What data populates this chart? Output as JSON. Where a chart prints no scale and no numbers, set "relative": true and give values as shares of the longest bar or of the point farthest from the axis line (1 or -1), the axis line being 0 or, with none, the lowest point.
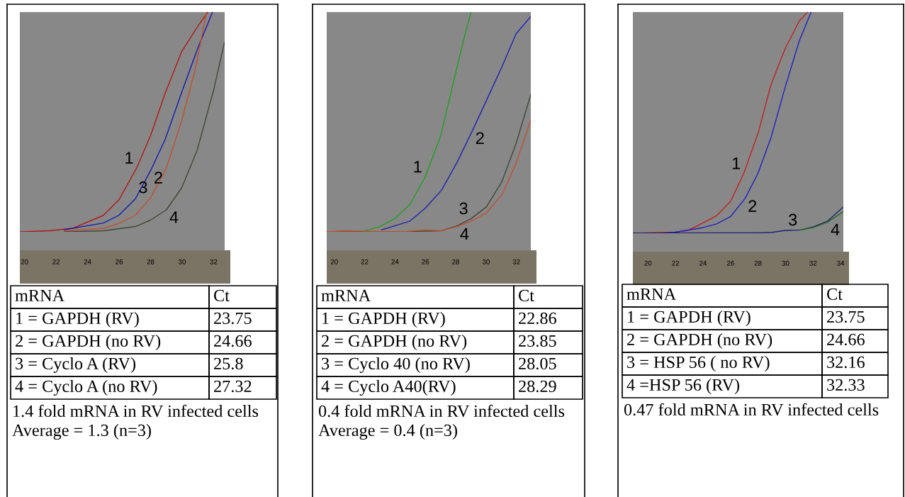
{
  "chart_data": [
    {
      "type": "line",
      "relative": true,
      "xlim": [
        19.7,
        32.7
      ],
      "xticks": [
        20,
        22,
        24,
        26,
        28,
        30,
        32
      ],
      "series": [
        {
          "name": "1",
          "color": "#b01818",
          "x": [
            19.73,
            21.54,
            23.04,
            25.0,
            25.98,
            27.11,
            28.01,
            28.92,
            29.97,
            30.95,
            31.63
          ],
          "values": [
            0,
            0.005,
            0.016,
            0.075,
            0.145,
            0.29,
            0.44,
            0.63,
            0.82,
            0.93,
            1.0
          ]
        },
        {
          "name": "2",
          "color": "#1818b0",
          "x": [
            22.52,
            25.0,
            25.98,
            27.03,
            28.01,
            28.92,
            30.05,
            31.02,
            31.93
          ],
          "values": [
            0.01,
            0.04,
            0.075,
            0.15,
            0.28,
            0.42,
            0.65,
            0.84,
            1.0
          ]
        },
        {
          "name": "3",
          "color": "#c05030",
          "x": [
            22.52,
            25.0,
            25.98,
            27.03,
            28.01,
            29.0,
            29.97,
            30.87,
            31.55
          ],
          "values": [
            0.005,
            0.016,
            0.038,
            0.075,
            0.156,
            0.29,
            0.505,
            0.75,
            1.0
          ]
        },
        {
          "name": "4",
          "color": "#404838",
          "x": [
            22.52,
            25.0,
            27.03,
            28.01,
            29.0,
            29.97,
            30.95,
            32.0,
            32.68
          ],
          "values": [
            0,
            0.005,
            0.024,
            0.054,
            0.1,
            0.2,
            0.37,
            0.645,
            0.86
          ]
        }
      ],
      "annotations": [
        "mRNA",
        "Ct",
        "1 = GAPDH (RV)",
        "23.75",
        "2 = GAPDH (no RV)",
        "24.66",
        "3 = Cyclo A (RV)",
        "25.8",
        "4 = Cyclo A (no RV)",
        "27.32",
        "1.4 fold mRNA in RV infected cells",
        "Average = 1.3 (n=3)"
      ]
    },
    {
      "type": "line",
      "relative": true,
      "xlim": [
        19.5,
        32.95
      ],
      "xticks": [
        20,
        22,
        24,
        26,
        28,
        30,
        32
      ],
      "series": [
        {
          "name": "1",
          "color": "#20a020",
          "x": [
            19.53,
            21.89,
            22.98,
            23.98,
            24.99,
            25.99,
            27.0,
            27.54,
            28.09,
            28.62,
            29.02
          ],
          "values": [
            0,
            0.002,
            0.024,
            0.06,
            0.125,
            0.25,
            0.435,
            0.59,
            0.75,
            0.9,
            1.0
          ]
        },
        {
          "name": "2",
          "color": "#2020b0",
          "x": [
            23.13,
            24.99,
            25.99,
            27.07,
            28.08,
            29.1,
            30.11,
            31.04,
            31.97,
            32.95
          ],
          "values": [
            0.009,
            0.049,
            0.107,
            0.19,
            0.315,
            0.46,
            0.61,
            0.75,
            0.9,
            0.98
          ]
        },
        {
          "name": "3",
          "color": "#404838",
          "x": [
            19.53,
            24.53,
            27.07,
            28.08,
            29.02,
            30.03,
            31.04,
            31.97,
            32.95
          ],
          "values": [
            0,
            0,
            0.005,
            0.027,
            0.06,
            0.114,
            0.228,
            0.4,
            0.625
          ]
        },
        {
          "name": "4",
          "color": "#c05030",
          "x": [
            19.53,
            20.65,
            24.53,
            25.92,
            27.07,
            28.08,
            29.02,
            30.03,
            31.04,
            31.97,
            32.95
          ],
          "values": [
            0,
            0.005,
            0,
            0.009,
            0.005,
            0.024,
            0.049,
            0.087,
            0.168,
            0.31,
            0.51
          ]
        }
      ],
      "annotations": [
        "mRNA",
        "Ct",
        "1 = GAPDH (RV)",
        "22.86",
        "2 = GAPDH (no RV)",
        "23.85",
        "3 = Cyclo 40 (no RV)",
        "28.05",
        "4 = Cyclo A40(RV)",
        "28.29",
        "0.4 fold mRNA in RV infected cells",
        "Average = 0.4 (n=3)"
      ]
    },
    {
      "type": "line",
      "relative": true,
      "xlim": [
        18.9,
        34.2
      ],
      "xticks": [
        20,
        22,
        24,
        26,
        28,
        30,
        32,
        34
      ],
      "series": [
        {
          "name": "1",
          "color": "#c02020",
          "x": [
            18.9,
            21.98,
            22.92,
            23.95,
            24.98,
            26.01,
            26.96,
            27.99,
            28.93,
            29.97,
            31.0,
            31.6
          ],
          "values": [
            0,
            0.005,
            0.013,
            0.045,
            0.079,
            0.145,
            0.27,
            0.45,
            0.67,
            0.835,
            0.96,
            1.0
          ]
        },
        {
          "name": "2",
          "color": "#2020c0",
          "x": [
            18.9,
            20.94,
            21.98,
            23.95,
            24.98,
            26.01,
            27.04,
            27.99,
            28.93,
            29.97,
            31.0,
            31.86
          ],
          "values": [
            0,
            0,
            0.005,
            0.025,
            0.042,
            0.076,
            0.156,
            0.27,
            0.43,
            0.66,
            0.87,
            1.0
          ]
        },
        {
          "name": "3",
          "color": "#202070",
          "x": [
            18.9,
            27.99,
            29.02,
            29.97,
            31.08,
            32.03,
            33.06,
            34.2
          ],
          "values": [
            0,
            0.002,
            0.004,
            0.013,
            0.015,
            0.029,
            0.055,
            0.119
          ]
        },
        {
          "name": "4",
          "color": "#207020",
          "x": [
            31.08,
            32.03,
            33.06,
            34.2
          ],
          "values": [
            0.015,
            0.026,
            0.05,
            0.098
          ]
        }
      ],
      "annotations": [
        "mRNA",
        "Ct",
        "1 = GAPDH (RV)",
        "23.75",
        "2 = GAPDH (no RV)",
        "24.66",
        "3 = HSP 56 ( no RV)",
        "32.16",
        "4 =HSP 56 (RV)",
        "32.33",
        "0.47 fold mRNA in RV infected cells"
      ]
    }
  ]
}
